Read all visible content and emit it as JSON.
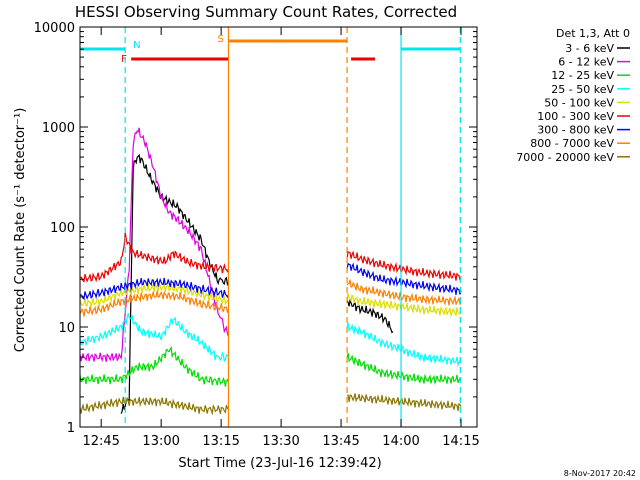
{
  "chart_data": {
    "type": "line",
    "title": "HESSI Observing Summary Count Rates, Corrected",
    "ylabel": "Corrected Count Rate (s⁻¹ detector⁻¹)",
    "xlabel": "Start Time (23-Jul-16 12:39:42)",
    "footer": "8-Nov-2017 20:42",
    "yscale": "log",
    "ylim": [
      1,
      10000
    ],
    "xlim": [
      "12:39:42",
      "14:19:00"
    ],
    "x_ticks": [
      "12:45",
      "13:00",
      "13:15",
      "13:30",
      "13:45",
      "14:00",
      "14:15"
    ],
    "y_ticks": [
      "1",
      "10",
      "100",
      "1000",
      "10000"
    ],
    "legend_header": "Det 1,3, Att 0",
    "legend_position": "right",
    "data_gap": [
      "13:16:50",
      "13:46:30"
    ],
    "flag_bars": [
      {
        "label": "N",
        "color": "#00e5ee",
        "segments": [
          [
            "12:39:42",
            "12:51:00"
          ],
          [
            "14:00:00",
            "14:14:50"
          ]
        ]
      },
      {
        "label": "F",
        "color": "#ee0000",
        "segments": [
          [
            "12:52:30",
            "13:16:50"
          ],
          [
            "13:47:30",
            "13:53:30"
          ]
        ]
      },
      {
        "label": "S",
        "color": "#ff7f00",
        "segments": [
          [
            "13:16:50",
            "13:46:30"
          ]
        ]
      }
    ],
    "vertical_markers": [
      {
        "time": "12:51:00",
        "color": "#00e5ee",
        "style": "dashed"
      },
      {
        "time": "13:16:50",
        "color": "#ff7f00",
        "style": "solid"
      },
      {
        "time": "13:46:30",
        "color": "#ff7f00",
        "style": "dashed"
      },
      {
        "time": "14:00:00",
        "color": "#00e5ee",
        "style": "solid"
      },
      {
        "time": "14:14:50",
        "color": "#00e5ee",
        "style": "dashed"
      }
    ],
    "series": [
      {
        "name": "3 - 6 keV",
        "color": "#000000",
        "points": [
          [
            "12:50:00",
            1.4
          ],
          [
            "12:52:00",
            2
          ],
          [
            "12:53:00",
            400
          ],
          [
            "12:54:00",
            500
          ],
          [
            "12:55:00",
            480
          ],
          [
            "12:57:00",
            330
          ],
          [
            "13:00:00",
            200
          ],
          [
            "13:04:00",
            160
          ],
          [
            "13:07:00",
            110
          ],
          [
            "13:10:00",
            75
          ],
          [
            "13:12:00",
            45
          ],
          [
            "13:14:00",
            30
          ],
          [
            "13:16:50",
            28
          ]
        ],
        "points2": [
          [
            "13:46:30",
            18
          ],
          [
            "13:50:00",
            15
          ],
          [
            "13:53:00",
            14
          ],
          [
            "13:56:00",
            12
          ],
          [
            "13:58:00",
            9
          ]
        ]
      },
      {
        "name": "6 - 12 keV",
        "color": "#e000e0",
        "points": [
          [
            "12:39:42",
            5
          ],
          [
            "12:45:00",
            5
          ],
          [
            "12:50:00",
            5
          ],
          [
            "12:52:00",
            40
          ],
          [
            "12:53:00",
            700
          ],
          [
            "12:54:00",
            950
          ],
          [
            "12:56:00",
            700
          ],
          [
            "12:58:00",
            400
          ],
          [
            "13:00:00",
            200
          ],
          [
            "13:02:00",
            140
          ],
          [
            "13:04:00",
            120
          ],
          [
            "13:07:00",
            90
          ],
          [
            "13:10:00",
            60
          ],
          [
            "13:12:00",
            30
          ],
          [
            "13:14:00",
            15
          ],
          [
            "13:16:50",
            8
          ]
        ]
      },
      {
        "name": "12 - 25 keV",
        "color": "#00dd00",
        "points": [
          [
            "12:39:42",
            3
          ],
          [
            "12:50:00",
            3
          ],
          [
            "12:54:00",
            4
          ],
          [
            "12:58:00",
            4
          ],
          [
            "13:02:00",
            6
          ],
          [
            "13:06:00",
            4
          ],
          [
            "13:10:00",
            3
          ],
          [
            "13:16:50",
            2.8
          ]
        ],
        "points2": [
          [
            "13:46:30",
            5
          ],
          [
            "13:55:00",
            3.5
          ],
          [
            "14:05:00",
            3
          ],
          [
            "14:15:00",
            3
          ]
        ]
      },
      {
        "name": "25 - 50 keV",
        "color": "#00ffff",
        "points": [
          [
            "12:39:42",
            7
          ],
          [
            "12:45:00",
            8
          ],
          [
            "12:50:00",
            10
          ],
          [
            "12:52:00",
            13
          ],
          [
            "12:55:00",
            9
          ],
          [
            "13:00:00",
            8
          ],
          [
            "13:03:00",
            12
          ],
          [
            "13:06:00",
            9
          ],
          [
            "13:10:00",
            7
          ],
          [
            "13:14:00",
            5
          ],
          [
            "13:16:50",
            5
          ]
        ],
        "points2": [
          [
            "13:46:30",
            10
          ],
          [
            "13:50:00",
            9
          ],
          [
            "13:55:00",
            7
          ],
          [
            "14:00:00",
            6
          ],
          [
            "14:05:00",
            5
          ],
          [
            "14:15:00",
            4.5
          ]
        ]
      },
      {
        "name": "50 - 100 keV",
        "color": "#dddd00",
        "points": [
          [
            "12:39:42",
            17
          ],
          [
            "12:45:00",
            18
          ],
          [
            "12:50:00",
            22
          ],
          [
            "12:55:00",
            24
          ],
          [
            "13:00:00",
            25
          ],
          [
            "13:05:00",
            24
          ],
          [
            "13:10:00",
            21
          ],
          [
            "13:16:50",
            18
          ]
        ],
        "points2": [
          [
            "13:46:30",
            20
          ],
          [
            "13:50:00",
            18
          ],
          [
            "13:55:00",
            17
          ],
          [
            "14:00:00",
            16
          ],
          [
            "14:05:00",
            15
          ],
          [
            "14:15:00",
            14
          ]
        ]
      },
      {
        "name": "100 - 300 keV",
        "color": "#ee0000",
        "points": [
          [
            "12:39:42",
            30
          ],
          [
            "12:45:00",
            32
          ],
          [
            "12:50:00",
            45
          ],
          [
            "12:51:00",
            80
          ],
          [
            "12:53:00",
            55
          ],
          [
            "12:58:00",
            48
          ],
          [
            "13:01:00",
            45
          ],
          [
            "13:03:00",
            55
          ],
          [
            "13:07:00",
            44
          ],
          [
            "13:11:00",
            40
          ],
          [
            "13:16:50",
            38
          ]
        ],
        "points2": [
          [
            "13:46:30",
            55
          ],
          [
            "13:50:00",
            48
          ],
          [
            "13:55:00",
            42
          ],
          [
            "14:00:00",
            38
          ],
          [
            "14:05:00",
            35
          ],
          [
            "14:15:00",
            32
          ]
        ]
      },
      {
        "name": "300 - 800 keV",
        "color": "#0000ee",
        "points": [
          [
            "12:39:42",
            20
          ],
          [
            "12:45:00",
            22
          ],
          [
            "12:50:00",
            25
          ],
          [
            "12:55:00",
            28
          ],
          [
            "13:00:00",
            28
          ],
          [
            "13:05:00",
            27
          ],
          [
            "13:10:00",
            24
          ],
          [
            "13:16:50",
            21
          ]
        ],
        "points2": [
          [
            "13:46:30",
            42
          ],
          [
            "13:50:00",
            36
          ],
          [
            "13:55:00",
            30
          ],
          [
            "14:00:00",
            28
          ],
          [
            "14:05:00",
            26
          ],
          [
            "14:15:00",
            23
          ]
        ]
      },
      {
        "name": "800 - 7000 keV",
        "color": "#ff7f00",
        "points": [
          [
            "12:39:42",
            14
          ],
          [
            "12:45:00",
            15
          ],
          [
            "12:50:00",
            18
          ],
          [
            "12:55:00",
            20
          ],
          [
            "13:00:00",
            21
          ],
          [
            "13:05:00",
            20
          ],
          [
            "13:10:00",
            17
          ],
          [
            "13:16:50",
            15
          ]
        ],
        "points2": [
          [
            "13:46:30",
            28
          ],
          [
            "13:50:00",
            24
          ],
          [
            "13:55:00",
            22
          ],
          [
            "14:00:00",
            20
          ],
          [
            "14:05:00",
            19
          ],
          [
            "14:15:00",
            18
          ]
        ]
      },
      {
        "name": "7000 - 20000 keV",
        "color": "#8b7500",
        "points": [
          [
            "12:39:42",
            1.5
          ],
          [
            "12:50:00",
            1.8
          ],
          [
            "13:00:00",
            1.8
          ],
          [
            "13:10:00",
            1.5
          ],
          [
            "13:16:50",
            1.5
          ]
        ],
        "points2": [
          [
            "13:46:30",
            2
          ],
          [
            "14:00:00",
            1.8
          ],
          [
            "14:15:00",
            1.6
          ]
        ]
      }
    ]
  }
}
